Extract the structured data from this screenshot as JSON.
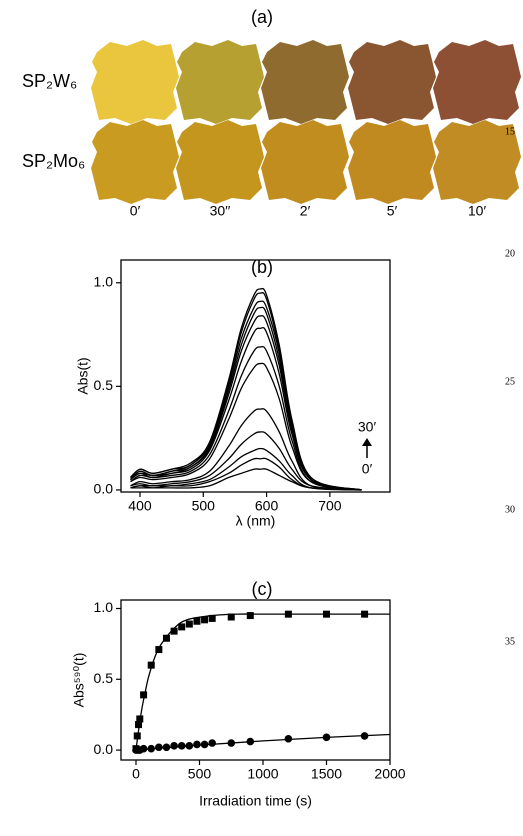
{
  "figure": {
    "panel_a": {
      "label": "(a)",
      "rows": [
        "SP₂W₆",
        "SP₂Mo₆"
      ],
      "columns": [
        "0′",
        "30′′",
        "2′",
        "5′",
        "10′"
      ]
    },
    "line_numbers": [
      15,
      20,
      25,
      30,
      35
    ]
  },
  "chart_data": [
    {
      "type": "line",
      "title": "(b)",
      "x_label": "λ (nm)",
      "y_label": "Abs(t)",
      "annotations": [
        "30′",
        "0′"
      ],
      "xlim": [
        370,
        795
      ],
      "ylim": [
        -0.01,
        1.11
      ],
      "xticks": [
        400,
        500,
        600,
        700
      ],
      "yticks": [
        {
          "value": 0,
          "label": "0.0"
        },
        {
          "value": 0.5,
          "label": "0.5"
        },
        {
          "value": 1,
          "label": "1.0"
        }
      ],
      "x": [
        385,
        400,
        420,
        450,
        480,
        510,
        540,
        560,
        580,
        590,
        600,
        620,
        640,
        670,
        750
      ],
      "series": [
        {
          "color": "#000000",
          "values": [
            0.01,
            0.01,
            0.01,
            0.01,
            0.01,
            0.02,
            0.06,
            0.08,
            0.1,
            0.1,
            0.1,
            0.07,
            0.04,
            0.01,
            0
          ]
        },
        {
          "color": "#000000",
          "values": [
            0.01,
            0.02,
            0.01,
            0.02,
            0.02,
            0.04,
            0.08,
            0.12,
            0.15,
            0.15,
            0.15,
            0.11,
            0.05,
            0.01,
            0
          ]
        },
        {
          "color": "#000000",
          "values": [
            0.01,
            0.02,
            0.02,
            0.02,
            0.03,
            0.05,
            0.11,
            0.16,
            0.19,
            0.2,
            0.19,
            0.14,
            0.07,
            0.01,
            0
          ]
        },
        {
          "color": "#000000",
          "values": [
            0.02,
            0.03,
            0.02,
            0.03,
            0.04,
            0.07,
            0.15,
            0.22,
            0.27,
            0.28,
            0.27,
            0.2,
            0.1,
            0.02,
            0
          ]
        },
        {
          "color": "#000000",
          "values": [
            0.02,
            0.04,
            0.03,
            0.04,
            0.05,
            0.09,
            0.21,
            0.31,
            0.38,
            0.39,
            0.38,
            0.28,
            0.14,
            0.02,
            0
          ]
        },
        {
          "color": "#000000",
          "values": [
            0.04,
            0.06,
            0.05,
            0.06,
            0.08,
            0.15,
            0.34,
            0.49,
            0.59,
            0.61,
            0.59,
            0.44,
            0.21,
            0.04,
            0
          ]
        },
        {
          "color": "#000000",
          "values": [
            0.04,
            0.07,
            0.06,
            0.07,
            0.09,
            0.17,
            0.38,
            0.55,
            0.67,
            0.69,
            0.67,
            0.5,
            0.24,
            0.04,
            0
          ]
        },
        {
          "color": "#000000",
          "values": [
            0.05,
            0.08,
            0.06,
            0.08,
            0.1,
            0.19,
            0.43,
            0.62,
            0.76,
            0.78,
            0.76,
            0.56,
            0.27,
            0.05,
            0
          ]
        },
        {
          "color": "#000000",
          "values": [
            0.05,
            0.08,
            0.07,
            0.08,
            0.11,
            0.2,
            0.46,
            0.67,
            0.81,
            0.84,
            0.81,
            0.6,
            0.29,
            0.05,
            0
          ]
        },
        {
          "color": "#000000",
          "values": [
            0.05,
            0.09,
            0.07,
            0.09,
            0.11,
            0.21,
            0.48,
            0.7,
            0.85,
            0.88,
            0.85,
            0.63,
            0.31,
            0.05,
            0
          ]
        },
        {
          "color": "#000000",
          "values": [
            0.05,
            0.09,
            0.07,
            0.09,
            0.12,
            0.22,
            0.5,
            0.73,
            0.88,
            0.91,
            0.88,
            0.66,
            0.32,
            0.05,
            0
          ]
        },
        {
          "color": "#000000",
          "values": [
            0.06,
            0.1,
            0.08,
            0.1,
            0.12,
            0.23,
            0.52,
            0.76,
            0.92,
            0.95,
            0.92,
            0.68,
            0.33,
            0.06,
            0
          ]
        },
        {
          "color": "#000000",
          "values": [
            0.06,
            0.1,
            0.08,
            0.1,
            0.13,
            0.23,
            0.53,
            0.78,
            0.94,
            0.97,
            0.94,
            0.7,
            0.34,
            0.06,
            0
          ]
        }
      ]
    },
    {
      "type": "scatter",
      "title": "(c)",
      "x_label": "Irradiation time (s)",
      "y_label": "Abs⁵⁹⁰(t)",
      "xlim": [
        -118,
        2000
      ],
      "ylim": [
        -0.07,
        1.06
      ],
      "xticks": [
        0,
        500,
        1000,
        1500,
        2000
      ],
      "yticks": [
        {
          "value": 0,
          "label": "0.0"
        },
        {
          "value": 0.5,
          "label": "0.5"
        },
        {
          "value": 1,
          "label": "1.0"
        }
      ],
      "series": [
        {
          "marker": "square",
          "color": "#000000",
          "x": [
            0,
            10,
            20,
            30,
            60,
            120,
            180,
            240,
            300,
            360,
            420,
            480,
            540,
            600,
            750,
            900,
            1200,
            1500,
            1800
          ],
          "values": [
            0.01,
            0.1,
            0.18,
            0.22,
            0.39,
            0.6,
            0.71,
            0.79,
            0.84,
            0.87,
            0.89,
            0.91,
            0.92,
            0.93,
            0.94,
            0.95,
            0.96,
            0.96,
            0.96
          ]
        },
        {
          "marker": "circle",
          "color": "#000000",
          "x": [
            0,
            15,
            30,
            60,
            120,
            180,
            240,
            300,
            360,
            420,
            480,
            540,
            600,
            750,
            900,
            1200,
            1500,
            1800
          ],
          "values": [
            0,
            0,
            0,
            0.01,
            0.01,
            0.02,
            0.02,
            0.03,
            0.03,
            0.03,
            0.04,
            0.04,
            0.05,
            0.05,
            0.06,
            0.08,
            0.09,
            0.1
          ]
        },
        {
          "marker": "none",
          "color": "#000000",
          "x": [
            0,
            25,
            50,
            75,
            100,
            150,
            200,
            300,
            400,
            600,
            800,
            1000,
            1500,
            2000
          ],
          "values": [
            0,
            0.17,
            0.31,
            0.42,
            0.52,
            0.66,
            0.75,
            0.86,
            0.92,
            0.95,
            0.96,
            0.96,
            0.96,
            0.96
          ]
        },
        {
          "marker": "none",
          "color": "#000000",
          "x": [
            0,
            500,
            1000,
            1500,
            2000
          ],
          "values": [
            0,
            0.035,
            0.065,
            0.09,
            0.11
          ]
        }
      ]
    }
  ]
}
